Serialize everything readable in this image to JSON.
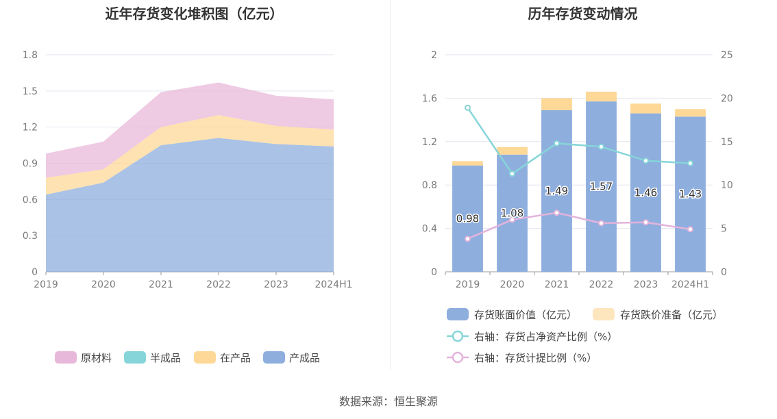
{
  "source_text": "数据来源：恒生聚源",
  "chart_data": [
    {
      "type": "area",
      "stacked": true,
      "title": "近年存货变化堆积图（亿元）",
      "categories": [
        "2019",
        "2020",
        "2021",
        "2022",
        "2023",
        "2024H1"
      ],
      "y_ticks": [
        "0",
        "0.3",
        "0.6",
        "0.9",
        "1.2",
        "1.5",
        "1.8"
      ],
      "ylim": [
        0,
        1.8
      ],
      "legend_position": "bottom",
      "series": [
        {
          "name": "产成品",
          "color": "#8eaede",
          "values": [
            0.64,
            0.74,
            1.05,
            1.11,
            1.06,
            1.04
          ]
        },
        {
          "name": "在产品",
          "color": "#fdd897",
          "values": [
            0.14,
            0.11,
            0.15,
            0.19,
            0.15,
            0.14
          ]
        },
        {
          "name": "半成品",
          "color": "#86d5d8",
          "values": [
            0,
            0,
            0,
            0,
            0,
            0
          ]
        },
        {
          "name": "原材料",
          "color": "#e8b8da",
          "values": [
            0.2,
            0.23,
            0.29,
            0.27,
            0.25,
            0.25
          ]
        }
      ],
      "legend_order": [
        "原材料",
        "半成品",
        "在产品",
        "产成品"
      ]
    },
    {
      "type": "bar",
      "stacked": true,
      "title": "历年存货变动情况",
      "categories": [
        "2019",
        "2020",
        "2021",
        "2022",
        "2023",
        "2024H1"
      ],
      "y_left_ticks": [
        "0",
        "0.4",
        "0.8",
        "1.2",
        "1.6",
        "2"
      ],
      "y_right_ticks": [
        "0",
        "5",
        "10",
        "15",
        "20",
        "25"
      ],
      "ylim_left": [
        0,
        2
      ],
      "ylim_right": [
        0,
        25
      ],
      "legend_position": "bottom",
      "bars": [
        {
          "name": "存货账面价值（亿元）",
          "color": "#8eaede",
          "values": [
            0.98,
            1.08,
            1.49,
            1.57,
            1.46,
            1.43
          ],
          "labels": [
            "0.98",
            "1.08",
            "1.49",
            "1.57",
            "1.46",
            "1.43"
          ]
        },
        {
          "name": "存货跌价准备（亿元）",
          "color": "#fdd897",
          "values": [
            0.04,
            0.07,
            0.11,
            0.09,
            0.09,
            0.07
          ]
        }
      ],
      "lines": [
        {
          "name": "右轴：存货占净资产比例（%）",
          "color": "#86d5d8",
          "values": [
            18.9,
            11.3,
            14.8,
            14.4,
            12.8,
            12.5
          ]
        },
        {
          "name": "右轴：存货计提比例（%）",
          "color": "#e3b3db",
          "values": [
            3.8,
            6.0,
            6.8,
            5.6,
            5.7,
            4.9
          ]
        }
      ],
      "legend_box_colors": [
        "#8eaede",
        "#fde5bd"
      ]
    }
  ]
}
